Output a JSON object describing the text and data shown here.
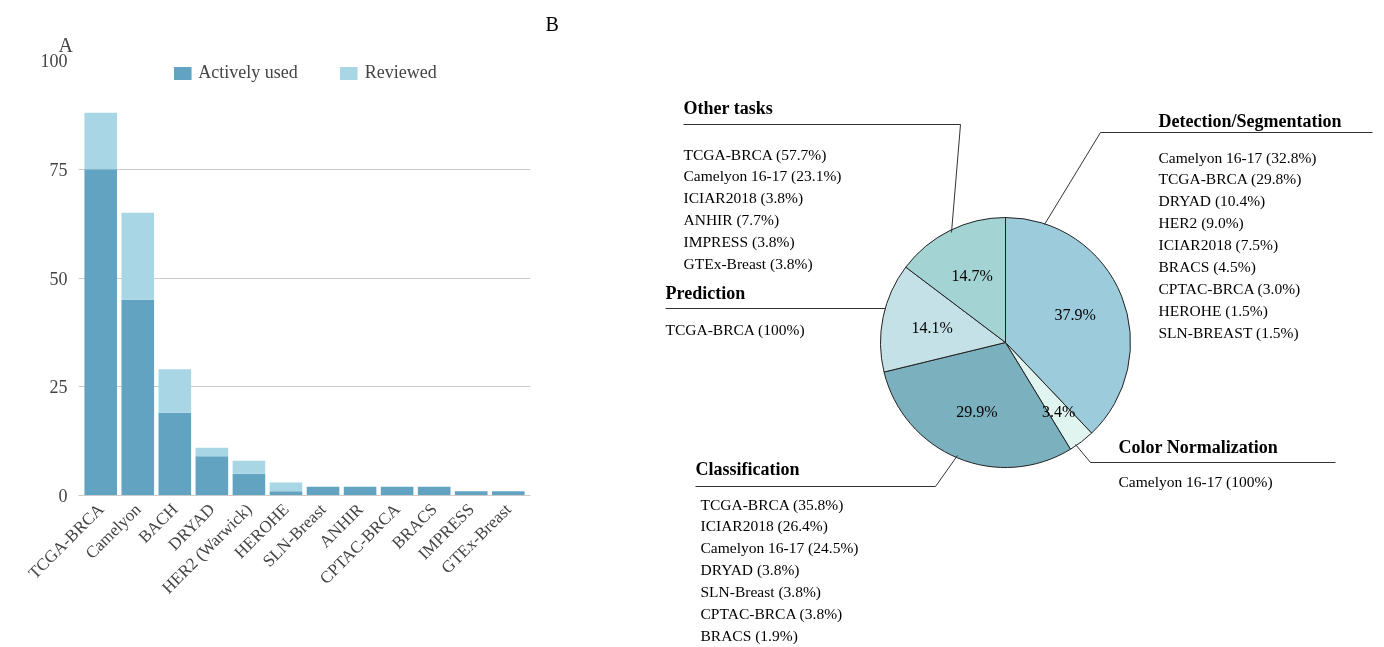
{
  "chart_data": [
    {
      "type": "bar",
      "title": "A",
      "categories": [
        "TCGA-BRCA",
        "Camelyon",
        "BACH",
        "DRYAD",
        "HER2 (Warwick)",
        "HEROHE",
        "SLN-Breast",
        "ANHIR",
        "CPTAC-BRCA",
        "BRACS",
        "IMPRESS",
        "GTEx-Breast"
      ],
      "series": [
        {
          "name": "Actively used",
          "color": "#62a3c2",
          "values": [
            75,
            45,
            19,
            9,
            5,
            1,
            2,
            2,
            2,
            2,
            1,
            1
          ]
        },
        {
          "name": "Reviewed",
          "color": "#a9d6e5",
          "values": [
            13,
            20,
            10,
            2,
            3,
            2,
            0,
            0,
            0,
            0,
            0,
            0
          ]
        }
      ],
      "stacked": true,
      "ylim": [
        0,
        100
      ],
      "yticks": [
        0,
        25,
        50,
        75,
        100
      ],
      "grid": "y",
      "legend": "top"
    },
    {
      "type": "pie",
      "title": "B",
      "categories": [
        "Detection/Segmentation",
        "Color Normalization",
        "Classification",
        "Prediction",
        "Other tasks"
      ],
      "values": [
        37.9,
        3.4,
        29.9,
        14.1,
        14.7
      ],
      "colors": [
        "#9ccbdc",
        "#e0f5f0",
        "#7bb0be",
        "#c5e1e8",
        "#a4d3d3"
      ],
      "value_labels": [
        "37.9%",
        "3.4%",
        "29.9%",
        "14.1%",
        "14.7%"
      ],
      "annotations": [
        "Camelyon 16-17  (32.8%)\nTCGA-BRCA (29.8%)\nDRYAD (10.4%)\nHER2 (9.0%)\nICIAR2018 (7.5%)\nBRACS (4.5%)\nCPTAC-BRCA (3.0%)\nHEROHE (1.5%)\nSLN-BREAST (1.5%)",
        "Camelyon 16-17  (100%)",
        "TCGA-BRCA (35.8%)\nICIAR2018 (26.4%)\nCamelyon 16-17  (24.5%)\nDRYAD (3.8%)\nSLN-Breast (3.8%)\nCPTAC-BRCA (3.8%)\nBRACS (1.9%)",
        "TCGA-BRCA (100%)",
        "TCGA-BRCA (57.7%)\nCamelyon 16-17  (23.1%)\nICIAR2018 (3.8%)\nANHIR (7.7%)\nIMPRESS (3.8%)\nGTEx-Breast (3.8%)"
      ]
    }
  ]
}
